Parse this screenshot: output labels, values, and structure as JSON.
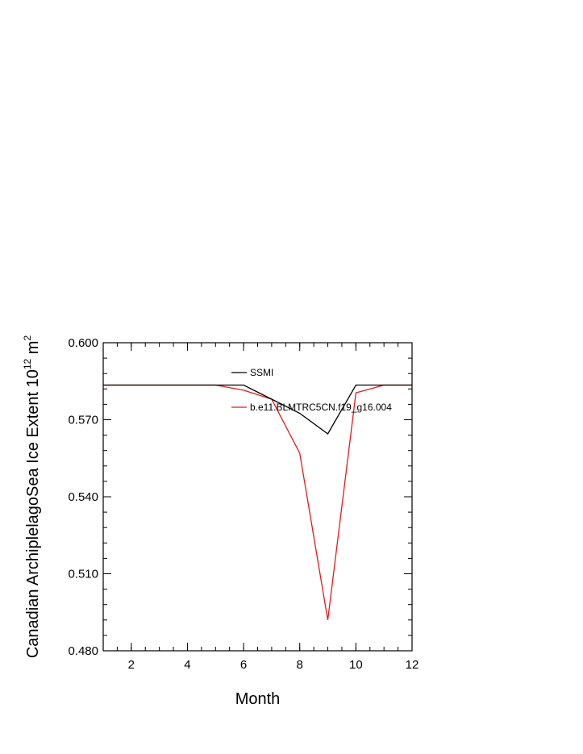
{
  "chart_data": {
    "type": "line",
    "title": "",
    "xlabel": "Month",
    "ylabel": {
      "main": "Canadian ArchiplelagoSea Ice Extent 10",
      "superscript": "12",
      "unit": " m",
      "unit_superscript": "2"
    },
    "xlim": [
      1,
      12
    ],
    "ylim": [
      0.48,
      0.6
    ],
    "x_ticks": [
      2,
      4,
      6,
      8,
      10,
      12
    ],
    "x_tick_labels": [
      "2",
      "4",
      "6",
      "8",
      "10",
      "12"
    ],
    "y_ticks": [
      0.48,
      0.51,
      0.54,
      0.57,
      0.6
    ],
    "y_tick_labels": [
      "0.480",
      "0.510",
      "0.540",
      "0.570",
      "0.600"
    ],
    "x": [
      1,
      2,
      3,
      4,
      5,
      6,
      7,
      8,
      9,
      10,
      11,
      12
    ],
    "series": [
      {
        "name": "SSMI",
        "color": "#000000",
        "values": [
          0.5835,
          0.5835,
          0.5835,
          0.5835,
          0.5835,
          0.5835,
          0.578,
          0.5725,
          0.5645,
          0.5835,
          0.5835,
          0.5835
        ]
      },
      {
        "name": "b.e11.BLMTRC5CN.f19_g16.004",
        "color": "#e31a1c",
        "values": [
          0.5835,
          0.5835,
          0.5835,
          0.5835,
          0.5835,
          0.5815,
          0.578,
          0.557,
          0.492,
          0.5805,
          0.5835,
          0.5835
        ]
      }
    ],
    "grid": false,
    "legend_position": "top-center"
  }
}
